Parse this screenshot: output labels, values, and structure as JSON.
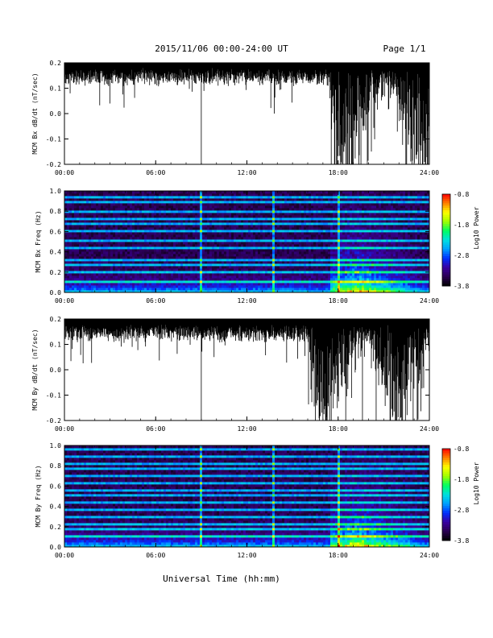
{
  "header": {
    "title": "2015/11/06  00:00-24:00 UT",
    "page": "Page 1/1"
  },
  "colors": {
    "trace": "#000000",
    "background": "#ffffff",
    "colormap": [
      "#000000",
      "#2a0050",
      "#3a00a0",
      "#0030ff",
      "#00a0ff",
      "#00e0e0",
      "#00ff60",
      "#a0ff00",
      "#ffff00",
      "#ff8000",
      "#ff0000"
    ]
  },
  "chart_data": [
    {
      "type": "line",
      "ylabel": "MCM Bx dB/dt (nT/sec)",
      "x_ticks": [
        "00:00",
        "06:00",
        "12:00",
        "18:00",
        "24:00"
      ],
      "y_ticks": [
        "0.2",
        "0.1",
        "0.0",
        "-0.1",
        "-0.2"
      ],
      "x_range": [
        0,
        24
      ],
      "ylim": [
        -0.2,
        0.2
      ],
      "events": [
        {
          "t": 9.0,
          "y": -0.2
        },
        {
          "t": 13.8,
          "y": 0.0
        },
        {
          "t": 18.5,
          "y": -0.2
        },
        {
          "t": 19.5,
          "y": -0.2
        },
        {
          "t": 23.0,
          "y": -0.2
        }
      ],
      "note_activity": "quiet near +0.18 with downward excursions; strong disturbance 17:30-24:00"
    },
    {
      "type": "heatmap",
      "ylabel": "MCM Bx Freq (Hz)",
      "x_ticks": [
        "00:00",
        "06:00",
        "12:00",
        "18:00",
        "24:00"
      ],
      "y_ticks": [
        "1.0",
        "0.8",
        "0.6",
        "0.4",
        "0.2",
        "0.0"
      ],
      "x_range": [
        0,
        24
      ],
      "ylim": [
        0,
        1.0
      ],
      "colorbar_label": "Log10 Power",
      "colorbar_ticks": [
        "-0.8",
        "-1.8",
        "-2.8",
        "-3.8"
      ],
      "clim": [
        -3.8,
        -0.8
      ],
      "harmonic_lines_hz": [
        0.1,
        0.2,
        0.27,
        0.33,
        0.43,
        0.5,
        0.6,
        0.67,
        0.73,
        0.8,
        0.9,
        0.95
      ],
      "broadband_spikes_hr": [
        9.0,
        13.8,
        18.0
      ]
    },
    {
      "type": "line",
      "ylabel": "MCM By dB/dt (nT/sec)",
      "x_ticks": [
        "00:00",
        "06:00",
        "12:00",
        "18:00",
        "24:00"
      ],
      "y_ticks": [
        "0.2",
        "0.1",
        "0.0",
        "-0.1",
        "-0.2"
      ],
      "x_range": [
        0,
        24
      ],
      "ylim": [
        -0.2,
        0.2
      ],
      "events": [
        {
          "t": 9.0,
          "y": -0.2
        },
        {
          "t": 17.0,
          "y": -0.2
        },
        {
          "t": 18.5,
          "y": -0.2
        },
        {
          "t": 19.6,
          "y": -0.2
        },
        {
          "t": 20.5,
          "y": -0.2
        }
      ],
      "note_activity": "quiet near +0.18 with downward excursions; strong disturbance 16:00-24:00"
    },
    {
      "type": "heatmap",
      "ylabel": "MCM By Freq (Hz)",
      "x_ticks": [
        "00:00",
        "06:00",
        "12:00",
        "18:00",
        "24:00"
      ],
      "y_ticks": [
        "1.0",
        "0.8",
        "0.6",
        "0.4",
        "0.2",
        "0.0"
      ],
      "x_range": [
        0,
        24
      ],
      "ylim": [
        0,
        1.0
      ],
      "colorbar_label": "Log10 Power",
      "colorbar_ticks": [
        "-0.8",
        "-1.8",
        "-2.8",
        "-3.8"
      ],
      "clim": [
        -3.8,
        -0.8
      ],
      "harmonic_lines_hz": [
        0.1,
        0.17,
        0.23,
        0.3,
        0.37,
        0.43,
        0.5,
        0.57,
        0.63,
        0.7,
        0.77,
        0.83,
        0.9,
        0.97
      ],
      "broadband_spikes_hr": [
        9.0,
        13.8,
        18.0
      ]
    }
  ],
  "footer": {
    "xlabel": "Universal Time (hh:mm)"
  }
}
